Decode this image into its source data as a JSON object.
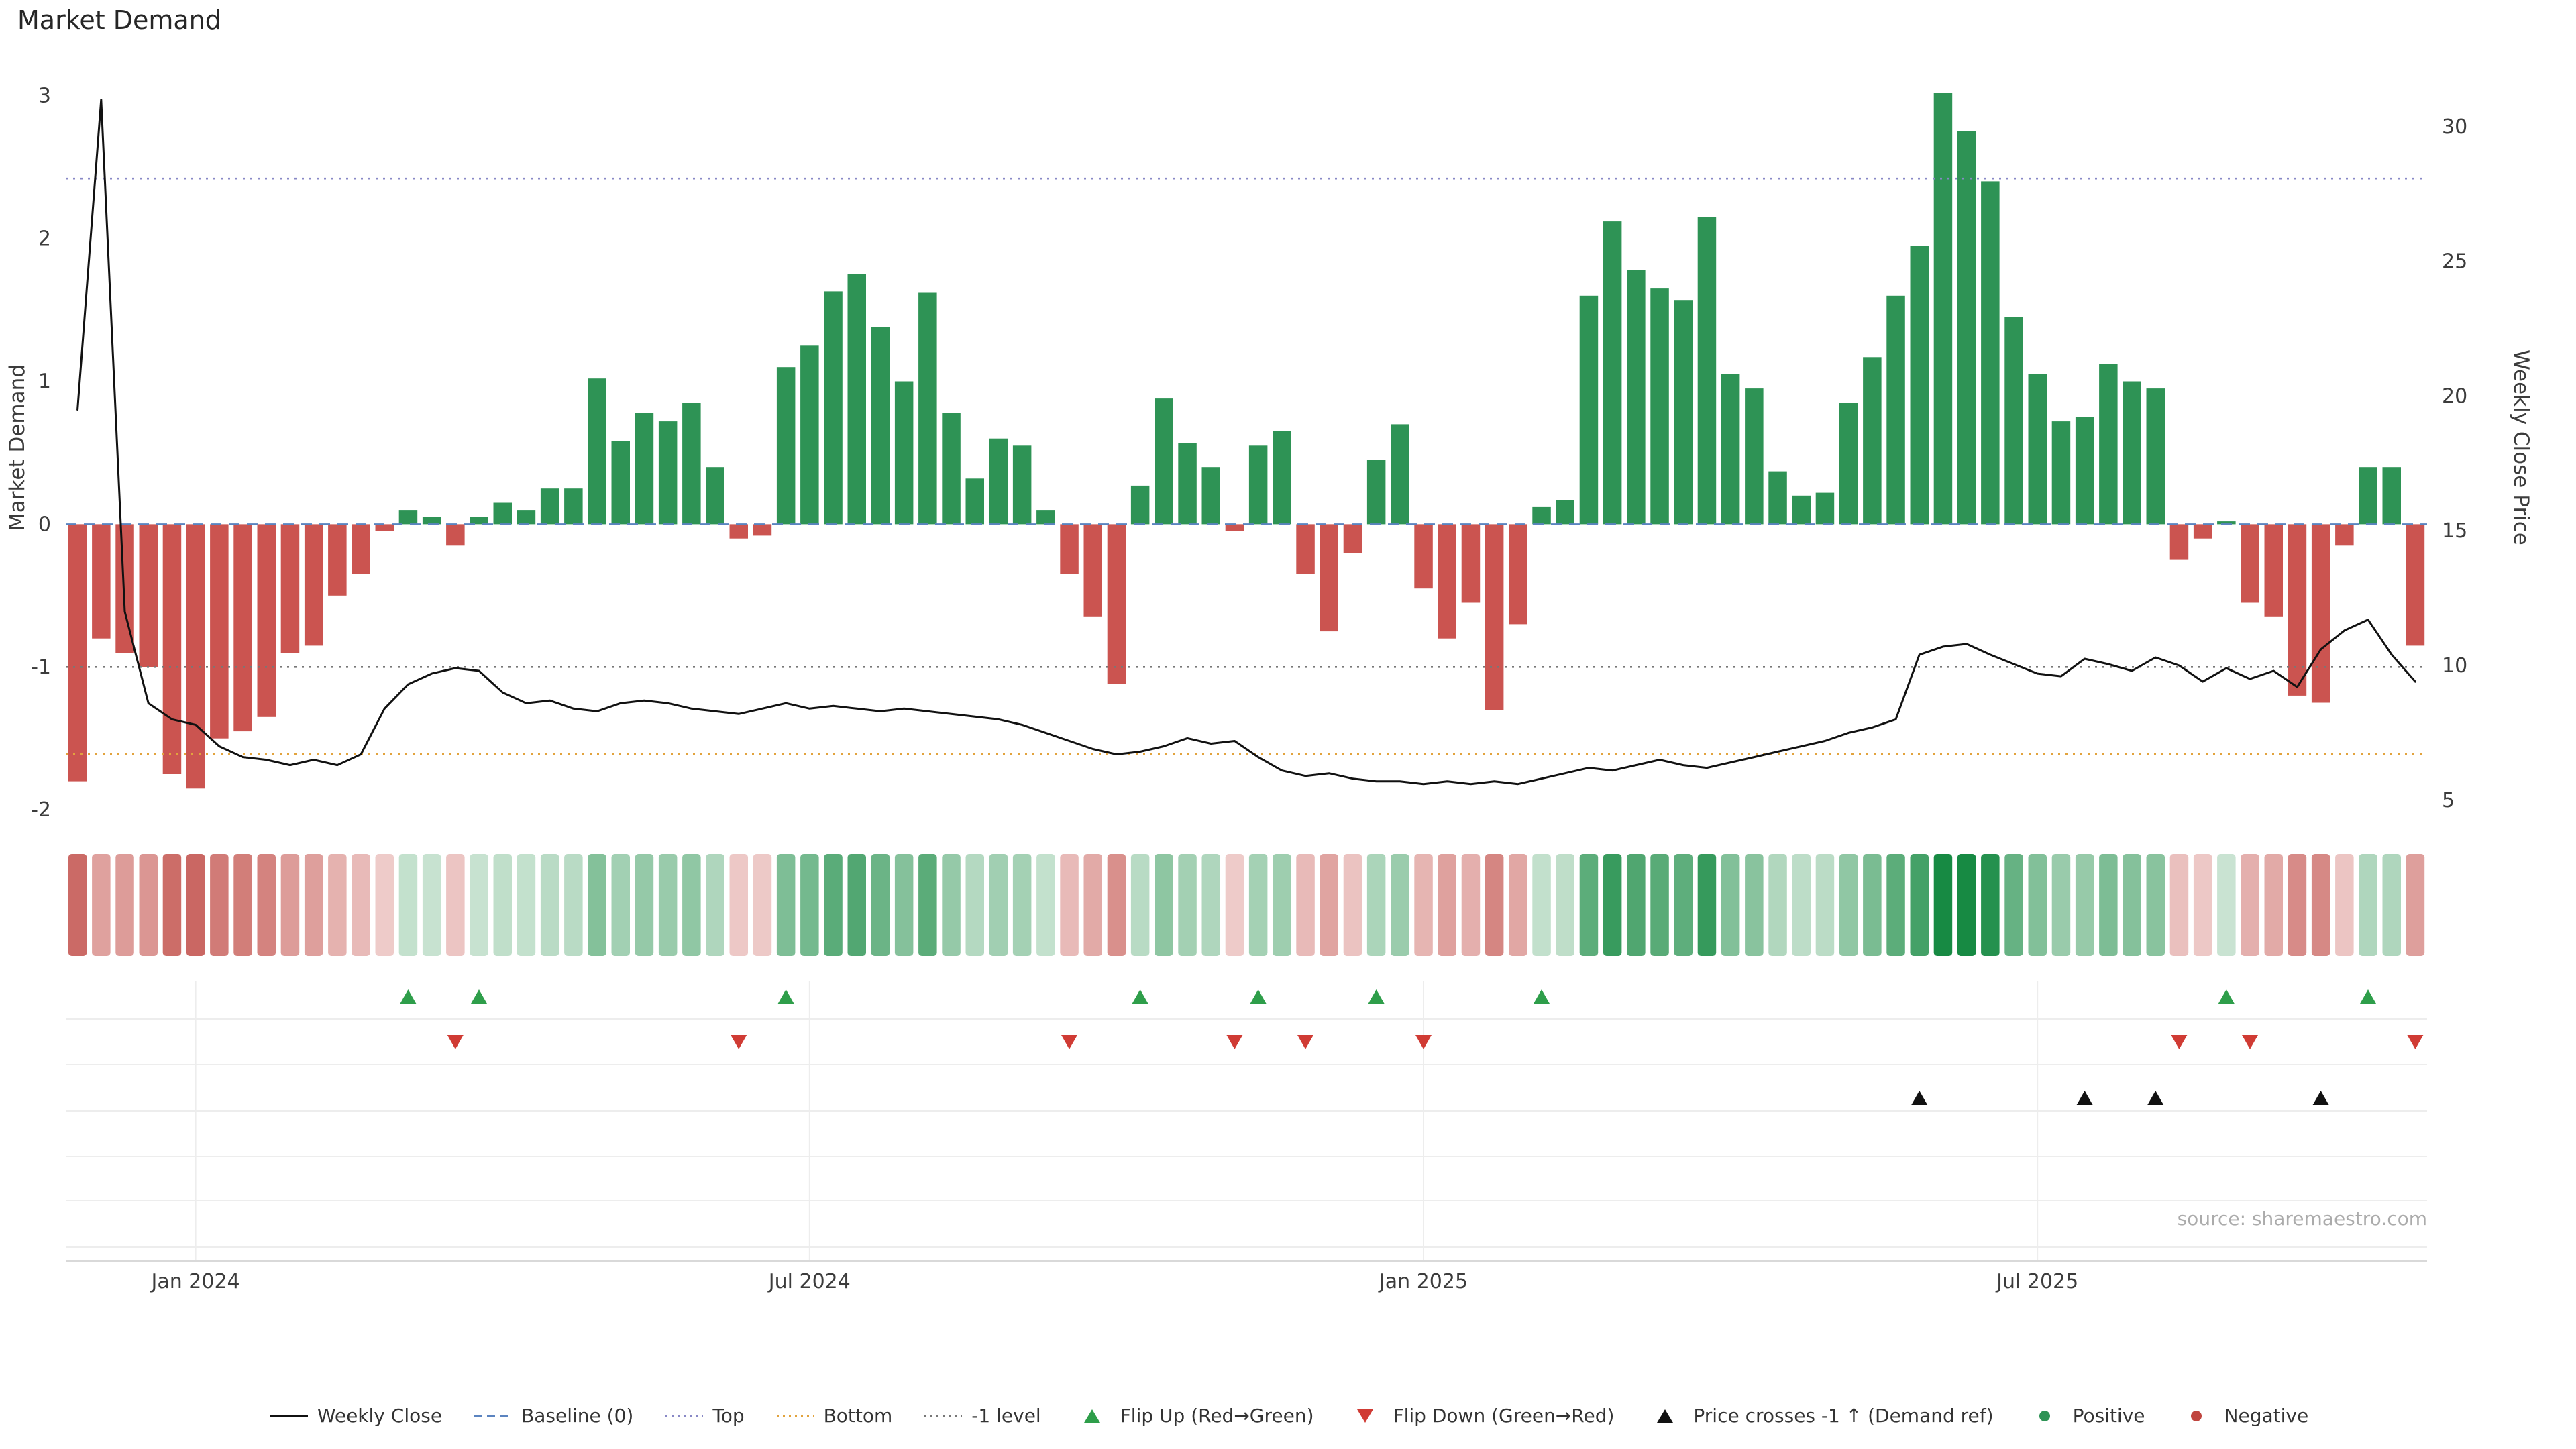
{
  "title": "Market Demand",
  "source": "source: sharemaestro.com",
  "colors": {
    "bar_positive": "#2e9355",
    "bar_negative": "#cb5450",
    "price_line": "#111111",
    "background": "#ffffff",
    "heat_green_dark": "#178a43",
    "heat_green_light": "#eaf4ec",
    "heat_red_dark": "#bb3e38",
    "heat_red_light": "#f8e7e6",
    "grid": "#ededed"
  },
  "chart_data": {
    "type": "bar+line",
    "frequency": "weekly",
    "left_axis": {
      "label": "Market Demand",
      "ticks": [
        -2,
        -1,
        0,
        1,
        2,
        3
      ],
      "range": [
        -2.14,
        3.21
      ]
    },
    "right_axis": {
      "label": "Weekly Close Price",
      "ticks": [
        5,
        10,
        15,
        20,
        25,
        30
      ],
      "range": [
        3.9,
        32.26
      ]
    },
    "x_ticks": [
      {
        "label": "Jan 2024",
        "index": 5
      },
      {
        "label": "Jul 2024",
        "index": 31
      },
      {
        "label": "Jan 2025",
        "index": 57
      },
      {
        "label": "Jul 2025",
        "index": 83
      }
    ],
    "bar_series": {
      "name": "Market Demand",
      "axis": "left",
      "values": [
        -1.8,
        -0.8,
        -0.9,
        -1.0,
        -1.75,
        -1.85,
        -1.5,
        -1.45,
        -1.35,
        -0.9,
        -0.85,
        -0.5,
        -0.35,
        -0.05,
        0.1,
        0.05,
        -0.15,
        0.05,
        0.15,
        0.1,
        0.25,
        0.25,
        1.02,
        0.58,
        0.78,
        0.72,
        0.85,
        0.4,
        -0.1,
        -0.08,
        1.1,
        1.25,
        1.63,
        1.75,
        1.38,
        1.0,
        1.62,
        0.78,
        0.32,
        0.6,
        0.55,
        0.1,
        -0.35,
        -0.65,
        -1.12,
        0.27,
        0.88,
        0.57,
        0.4,
        -0.05,
        0.55,
        0.65,
        -0.35,
        -0.75,
        -0.2,
        0.45,
        0.7,
        -0.45,
        -0.8,
        -0.55,
        -1.3,
        -0.7,
        0.12,
        0.17,
        1.6,
        2.12,
        1.78,
        1.65,
        1.57,
        2.15,
        1.05,
        0.95,
        0.37,
        0.2,
        0.22,
        0.85,
        1.17,
        1.6,
        1.95,
        3.02,
        2.75,
        2.4,
        1.45,
        1.05,
        0.72,
        0.75,
        1.12,
        1.0,
        0.95,
        -0.25,
        -0.1,
        0.02,
        -0.55,
        -0.65,
        -1.2,
        -1.25,
        -0.15,
        0.4,
        0.4,
        -0.85
      ]
    },
    "line_series": {
      "name": "Weekly Close",
      "axis": "right",
      "values": [
        19.5,
        31.0,
        12.0,
        8.6,
        8.0,
        7.8,
        7.0,
        6.6,
        6.5,
        6.3,
        6.5,
        6.3,
        6.7,
        8.4,
        9.3,
        9.7,
        9.9,
        9.8,
        9.0,
        8.6,
        8.7,
        8.4,
        8.3,
        8.6,
        8.7,
        8.6,
        8.4,
        8.3,
        8.2,
        8.4,
        8.6,
        8.4,
        8.5,
        8.4,
        8.3,
        8.4,
        8.3,
        8.2,
        8.1,
        8.0,
        7.8,
        7.5,
        7.2,
        6.9,
        6.7,
        6.8,
        7.0,
        7.3,
        7.1,
        7.2,
        6.6,
        6.1,
        5.9,
        6.0,
        5.8,
        5.7,
        5.7,
        5.6,
        5.7,
        5.6,
        5.7,
        5.6,
        5.8,
        6.0,
        6.2,
        6.1,
        6.3,
        6.5,
        6.3,
        6.2,
        6.4,
        6.6,
        6.8,
        7.0,
        7.2,
        7.5,
        7.7,
        8.0,
        10.4,
        10.7,
        10.8,
        10.4,
        10.05,
        9.7,
        9.6,
        10.25,
        10.05,
        9.8,
        10.3,
        10.0,
        9.4,
        9.9,
        9.5,
        9.8,
        9.2,
        10.6,
        11.3,
        11.7,
        10.4,
        9.4
      ]
    },
    "reference_lines": [
      {
        "name": "Baseline (0)",
        "axis": "left",
        "value": 0,
        "style": "dashed",
        "color": "#5b84c0"
      },
      {
        "name": "Top",
        "axis": "left",
        "value": 2.42,
        "style": "dotted",
        "color": "#8888c6"
      },
      {
        "name": "Bottom",
        "axis": "left",
        "value": -1.61,
        "style": "dotted",
        "color": "#e2a33d"
      },
      {
        "name": "-1 level",
        "axis": "left",
        "value": -1,
        "style": "dotted",
        "color": "#777777"
      }
    ],
    "markers": {
      "flip_up": {
        "label": "Flip Up (Red→Green)",
        "color": "#2e9e4a",
        "indices": [
          14,
          17,
          30,
          45,
          50,
          55,
          62,
          91,
          97
        ]
      },
      "flip_down": {
        "label": "Flip Down (Green→Red)",
        "color": "#d03b34",
        "indices": [
          16,
          28,
          42,
          49,
          52,
          57,
          89,
          92,
          99
        ]
      },
      "price_cross_minus1": {
        "label": "Price crosses -1 ↑ (Demand ref)",
        "color": "#111111",
        "indices": [
          78,
          85,
          88,
          95
        ]
      }
    },
    "heatmap": {
      "description": "weekly demand intensity strip, green positive / red negative, derived from bar_series values"
    }
  },
  "legend": {
    "items": [
      {
        "key": "weekly-close",
        "label": "Weekly Close",
        "swatch": "line",
        "color": "#111111"
      },
      {
        "key": "baseline",
        "label": "Baseline (0)",
        "swatch": "dashed-line",
        "color": "#5b84c0"
      },
      {
        "key": "top",
        "label": "Top",
        "swatch": "dotted-line",
        "color": "#8888c6"
      },
      {
        "key": "bottom",
        "label": "Bottom",
        "swatch": "dotted-line",
        "color": "#e2a33d"
      },
      {
        "key": "minus-1-level",
        "label": "-1 level",
        "swatch": "dotted-line",
        "color": "#777777"
      },
      {
        "key": "flip-up",
        "label": "Flip Up (Red→Green)",
        "swatch": "triangle-up",
        "color": "#2e9e4a"
      },
      {
        "key": "flip-down",
        "label": "Flip Down (Green→Red)",
        "swatch": "triangle-down",
        "color": "#d03b34"
      },
      {
        "key": "price-crosses-minus1",
        "label": "Price crosses -1 ↑ (Demand ref)",
        "swatch": "triangle-up",
        "color": "#111111"
      },
      {
        "key": "positive",
        "label": "Positive",
        "swatch": "circle",
        "color": "#2e9355"
      },
      {
        "key": "negative",
        "label": "Negative",
        "swatch": "circle",
        "color": "#c0453f"
      }
    ]
  }
}
